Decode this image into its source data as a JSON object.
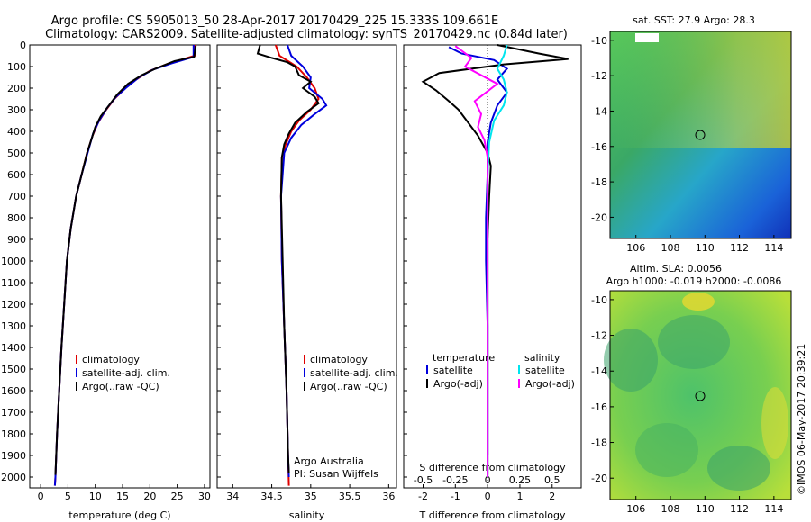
{
  "title": {
    "line1": "Argo profile: CS 5905013_50 28-Apr-2017 20170429_225 15.333S 109.661E",
    "line2": "Climatology: CARS2009. Satellite-adjusted climatology: synTS_20170429.nc (0.84d later)"
  },
  "colors": {
    "climatology": "#e00000",
    "satellite": "#0000dd",
    "argo": "#000000",
    "sal_satellite": "#00e5ee",
    "sal_argo": "#ff00ff"
  },
  "chart_data": [
    {
      "type": "line",
      "panel": "temperature",
      "xlabel": "temperature (deg C)",
      "ylabel": "",
      "xlim": [
        -2,
        31
      ],
      "ylim": [
        2050,
        0
      ],
      "xticks": [
        "0",
        "5",
        "10",
        "15",
        "20",
        "25",
        "30"
      ],
      "yticks": [
        "0",
        "100",
        "200",
        "300",
        "400",
        "500",
        "600",
        "700",
        "800",
        "900",
        "1000",
        "1100",
        "1200",
        "1300",
        "1400",
        "1500",
        "1600",
        "1700",
        "1800",
        "1900",
        "2000"
      ],
      "legend": [
        "climatology",
        "satellite-adj. clim.",
        "Argo(..raw -QC)"
      ],
      "series": [
        {
          "name": "climatology",
          "color_key": "climatology",
          "points": [
            [
              28.2,
              0
            ],
            [
              28.2,
              50
            ],
            [
              23.5,
              85
            ],
            [
              20,
              120
            ],
            [
              17.5,
              160
            ],
            [
              15.5,
              200
            ],
            [
              13.5,
              250
            ],
            [
              12,
              300
            ],
            [
              10.5,
              360
            ],
            [
              9.5,
              420
            ],
            [
              8.5,
              500
            ],
            [
              7.5,
              600
            ],
            [
              6.5,
              700
            ],
            [
              5.5,
              850
            ],
            [
              4.8,
              1000
            ],
            [
              4.3,
              1200
            ],
            [
              3.8,
              1400
            ],
            [
              3.4,
              1600
            ],
            [
              3.0,
              1800
            ],
            [
              2.7,
              2000
            ],
            [
              2.6,
              2040
            ]
          ]
        },
        {
          "name": "satellite-adj. clim.",
          "color_key": "satellite",
          "points": [
            [
              28.0,
              0
            ],
            [
              28.0,
              55
            ],
            [
              24,
              85
            ],
            [
              20.5,
              115
            ],
            [
              18,
              150
            ],
            [
              15.8,
              195
            ],
            [
              13.8,
              240
            ],
            [
              12.2,
              290
            ],
            [
              10.7,
              350
            ],
            [
              9.6,
              410
            ],
            [
              8.6,
              500
            ],
            [
              7.5,
              600
            ],
            [
              6.5,
              700
            ],
            [
              5.5,
              850
            ],
            [
              4.8,
              1000
            ],
            [
              4.3,
              1200
            ],
            [
              3.8,
              1400
            ],
            [
              3.4,
              1600
            ],
            [
              3.0,
              1800
            ],
            [
              2.7,
              2000
            ],
            [
              2.6,
              2040
            ]
          ]
        },
        {
          "name": "Argo(..raw -QC)",
          "color_key": "argo",
          "points": [
            [
              28.4,
              5
            ],
            [
              28.1,
              55
            ],
            [
              24.5,
              75
            ],
            [
              21,
              110
            ],
            [
              18.5,
              140
            ],
            [
              16,
              180
            ],
            [
              14,
              230
            ],
            [
              12.5,
              280
            ],
            [
              11,
              330
            ],
            [
              10,
              380
            ],
            [
              9.5,
              420
            ],
            [
              8.5,
              500
            ],
            [
              7.5,
              600
            ],
            [
              6.5,
              700
            ],
            [
              5.5,
              850
            ],
            [
              4.8,
              1000
            ],
            [
              4.3,
              1200
            ],
            [
              3.8,
              1400
            ],
            [
              3.4,
              1600
            ],
            [
              3.0,
              1800
            ],
            [
              2.7,
              1990
            ]
          ]
        }
      ]
    },
    {
      "type": "line",
      "panel": "salinity",
      "xlabel": "salinity",
      "xlim": [
        33.8,
        36.1
      ],
      "ylim": [
        2050,
        0
      ],
      "xticks": [
        "34",
        "34.5",
        "35",
        "35.5",
        "36"
      ],
      "legend": [
        "climatology",
        "satellite-adj. clim.",
        "Argo(..raw -QC)"
      ],
      "annotation": [
        "Argo Australia",
        "PI: Susan Wijffels"
      ],
      "series": [
        {
          "name": "climatology",
          "color_key": "climatology",
          "points": [
            [
              34.55,
              0
            ],
            [
              34.6,
              50
            ],
            [
              34.82,
              100
            ],
            [
              34.95,
              150
            ],
            [
              35.05,
              200
            ],
            [
              35.1,
              250
            ],
            [
              35.0,
              300
            ],
            [
              34.85,
              350
            ],
            [
              34.75,
              400
            ],
            [
              34.68,
              460
            ],
            [
              34.63,
              520
            ],
            [
              34.62,
              700
            ],
            [
              34.63,
              1000
            ],
            [
              34.66,
              1300
            ],
            [
              34.69,
              1600
            ],
            [
              34.71,
              1900
            ],
            [
              34.72,
              2040
            ]
          ]
        },
        {
          "name": "satellite-adj. clim.",
          "color_key": "satellite",
          "points": [
            [
              34.7,
              0
            ],
            [
              34.75,
              50
            ],
            [
              34.9,
              100
            ],
            [
              35.0,
              150
            ],
            [
              34.98,
              200
            ],
            [
              35.15,
              250
            ],
            [
              35.2,
              280
            ],
            [
              35.05,
              320
            ],
            [
              34.88,
              370
            ],
            [
              34.75,
              430
            ],
            [
              34.66,
              500
            ],
            [
              34.62,
              700
            ],
            [
              34.63,
              1000
            ],
            [
              34.66,
              1300
            ],
            [
              34.69,
              1600
            ],
            [
              34.71,
              1900
            ],
            [
              34.72,
              2000
            ]
          ]
        },
        {
          "name": "Argo(..raw -QC)",
          "color_key": "argo",
          "points": [
            [
              34.35,
              0
            ],
            [
              34.32,
              40
            ],
            [
              34.5,
              60
            ],
            [
              34.7,
              80
            ],
            [
              34.8,
              100
            ],
            [
              34.85,
              140
            ],
            [
              35.0,
              170
            ],
            [
              34.9,
              200
            ],
            [
              35.05,
              240
            ],
            [
              35.1,
              270
            ],
            [
              34.95,
              310
            ],
            [
              34.8,
              360
            ],
            [
              34.72,
              410
            ],
            [
              34.66,
              460
            ],
            [
              34.63,
              520
            ],
            [
              34.62,
              700
            ],
            [
              34.64,
              1000
            ],
            [
              34.66,
              1300
            ],
            [
              34.69,
              1600
            ],
            [
              34.71,
              1900
            ],
            [
              34.72,
              1980
            ]
          ]
        }
      ]
    },
    {
      "type": "line",
      "panel": "difference",
      "xlabel": "T difference from climatology",
      "xlabel_top": "S difference from climatology",
      "xlim": [
        -2.6,
        2.9
      ],
      "ylim": [
        2050,
        0
      ],
      "xticks": [
        "-2",
        "-1",
        "0",
        "1",
        "2"
      ],
      "xticks_top": [
        "-0.5",
        "-0.25",
        "0",
        "0.25",
        "0.5"
      ],
      "legend": {
        "temperature": "temperature",
        "salinity": "salinity",
        "satellite": "satellite",
        "argo": "Argo(-adj)"
      },
      "series": [
        {
          "name": "satellite",
          "group": "temperature",
          "color_key": "satellite",
          "points": [
            [
              -1.2,
              10
            ],
            [
              -0.8,
              40
            ],
            [
              0.2,
              70
            ],
            [
              0.6,
              110
            ],
            [
              0.3,
              160
            ],
            [
              0.6,
              220
            ],
            [
              0.3,
              280
            ],
            [
              0.1,
              360
            ],
            [
              0.0,
              450
            ],
            [
              0.0,
              600
            ],
            [
              -0.05,
              800
            ],
            [
              -0.05,
              1000
            ],
            [
              0.0,
              1300
            ],
            [
              0.0,
              1600
            ],
            [
              0.0,
              1900
            ]
          ]
        },
        {
          "name": "Argo(-adj)",
          "group": "temperature",
          "color_key": "argo",
          "points": [
            [
              0.3,
              0
            ],
            [
              1.6,
              40
            ],
            [
              2.5,
              65
            ],
            [
              0.5,
              90
            ],
            [
              -1.5,
              130
            ],
            [
              -2.0,
              170
            ],
            [
              -1.6,
              210
            ],
            [
              -1.2,
              260
            ],
            [
              -0.9,
              300
            ],
            [
              -0.6,
              360
            ],
            [
              -0.3,
              420
            ],
            [
              0.0,
              500
            ],
            [
              0.1,
              560
            ],
            [
              0.05,
              700
            ],
            [
              0.0,
              900
            ],
            [
              0.0,
              1200
            ],
            [
              0.0,
              1600
            ],
            [
              0.0,
              1990
            ]
          ]
        },
        {
          "name": "satellite",
          "group": "salinity",
          "color_key": "sal_satellite",
          "points": [
            [
              0.6,
              0
            ],
            [
              0.5,
              50
            ],
            [
              0.3,
              110
            ],
            [
              0.5,
              160
            ],
            [
              0.6,
              220
            ],
            [
              0.5,
              280
            ],
            [
              0.2,
              350
            ],
            [
              0.05,
              450
            ],
            [
              0.0,
              600
            ],
            [
              0.0,
              900
            ],
            [
              0.0,
              1300
            ],
            [
              0.0,
              1700
            ],
            [
              0.0,
              2000
            ]
          ]
        },
        {
          "name": "Argo(-adj)",
          "group": "salinity",
          "color_key": "sal_argo",
          "points": [
            [
              -1.0,
              5
            ],
            [
              -0.5,
              60
            ],
            [
              -0.7,
              100
            ],
            [
              0.3,
              180
            ],
            [
              -0.4,
              260
            ],
            [
              -0.2,
              320
            ],
            [
              -0.3,
              380
            ],
            [
              -0.1,
              440
            ],
            [
              0.0,
              520
            ],
            [
              0.0,
              700
            ],
            [
              0.0,
              1000
            ],
            [
              0.0,
              1400
            ],
            [
              0.0,
              1800
            ],
            [
              0.0,
              2000
            ]
          ]
        }
      ]
    },
    {
      "type": "heatmap",
      "panel": "sst",
      "title": "sat. SST: 27.9 Argo: 28.3",
      "xlim": [
        104.5,
        115
      ],
      "ylim": [
        -21.2,
        -9.5
      ],
      "xticks": [
        "106",
        "108",
        "110",
        "112",
        "114"
      ],
      "yticks": [
        "-10",
        "-12",
        "-14",
        "-16",
        "-18",
        "-20"
      ],
      "marker": {
        "lon": 109.661,
        "lat": -15.333
      }
    },
    {
      "type": "heatmap",
      "panel": "sla",
      "title_line1": "Altim. SLA: 0.0056",
      "title_line2": "Argo h1000: -0.019 h2000: -0.0086",
      "xlim": [
        104.5,
        115
      ],
      "ylim": [
        -21.2,
        -9.5
      ],
      "xticks": [
        "106",
        "108",
        "110",
        "112",
        "114"
      ],
      "yticks": [
        "-10",
        "-12",
        "-14",
        "-16",
        "-18",
        "-20"
      ],
      "marker": {
        "lon": 109.661,
        "lat": -15.333
      }
    }
  ],
  "footer": {
    "stamp": "©IMOS 06-May-2017 20:39:21"
  }
}
